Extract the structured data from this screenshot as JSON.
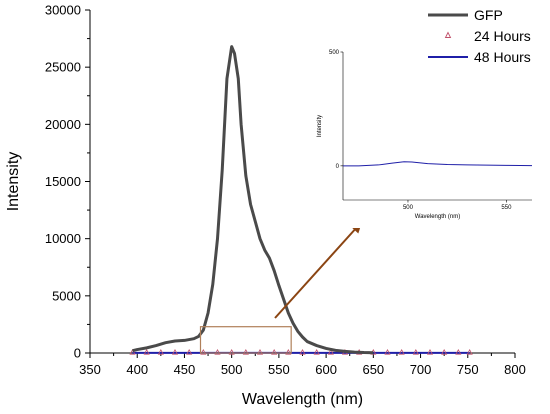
{
  "chart_data": {
    "type": "line",
    "title": "",
    "xlabel": "Wavelength (nm)",
    "ylabel": "Intensity",
    "xlim": [
      350,
      800
    ],
    "ylim": [
      0,
      30000
    ],
    "xticks": [
      350,
      400,
      450,
      500,
      550,
      600,
      650,
      700,
      750,
      800
    ],
    "yticks": [
      0,
      5000,
      10000,
      15000,
      20000,
      25000,
      30000
    ],
    "grid": false,
    "legend_position": "top-right",
    "series": [
      {
        "name": "GFP",
        "color": "#4a4a4a",
        "style": "line",
        "x": [
          395,
          400,
          410,
          420,
          430,
          440,
          450,
          460,
          465,
          470,
          475,
          480,
          485,
          490,
          495,
          500,
          503,
          507,
          510,
          515,
          520,
          525,
          530,
          535,
          540,
          545,
          550,
          555,
          560,
          565,
          570,
          575,
          580,
          590,
          600,
          610,
          620,
          630,
          640,
          650
        ],
        "y": [
          200,
          300,
          450,
          650,
          900,
          1050,
          1100,
          1250,
          1450,
          2000,
          3500,
          6000,
          10000,
          16000,
          24000,
          26800,
          26200,
          24000,
          20000,
          15500,
          13000,
          11500,
          10000,
          9000,
          8300,
          7200,
          5900,
          4700,
          3500,
          2600,
          1900,
          1400,
          1000,
          650,
          400,
          230,
          140,
          80,
          40,
          20
        ]
      },
      {
        "name": "24 Hours",
        "color": "#c0506a",
        "style": "markers",
        "marker": "triangle",
        "x": [
          395,
          410,
          425,
          440,
          455,
          470,
          485,
          500,
          515,
          530,
          545,
          560,
          575,
          590,
          605,
          620,
          635,
          650,
          665,
          680,
          695,
          710,
          725,
          740,
          752
        ],
        "y": [
          50,
          50,
          50,
          50,
          50,
          50,
          50,
          50,
          50,
          50,
          50,
          50,
          50,
          50,
          50,
          50,
          50,
          50,
          50,
          50,
          50,
          50,
          50,
          50,
          50
        ]
      },
      {
        "name": "48 Hours",
        "color": "#1f1fa8",
        "style": "line",
        "x": [
          395,
          450,
          500,
          550,
          600,
          650,
          700,
          752
        ],
        "y": [
          10,
          10,
          15,
          10,
          10,
          10,
          10,
          10
        ]
      }
    ],
    "zoom_box": {
      "x": [
        467,
        563
      ],
      "y": [
        0,
        2300
      ]
    },
    "inset": {
      "xlabel": "Wavelength (nm)",
      "ylabel": "Intensity",
      "xlim": [
        467,
        563
      ],
      "ylim": [
        -150,
        500
      ],
      "xticks": [
        500,
        550
      ],
      "yticks": [
        0,
        500
      ],
      "series": [
        {
          "name": "48 Hours",
          "color": "#1f1fa8",
          "x": [
            467,
            475,
            485,
            492,
            498,
            502,
            510,
            520,
            530,
            540,
            550,
            563
          ],
          "y": [
            0,
            0,
            4,
            12,
            18,
            17,
            10,
            6,
            4,
            3,
            2,
            1
          ]
        }
      ]
    }
  }
}
